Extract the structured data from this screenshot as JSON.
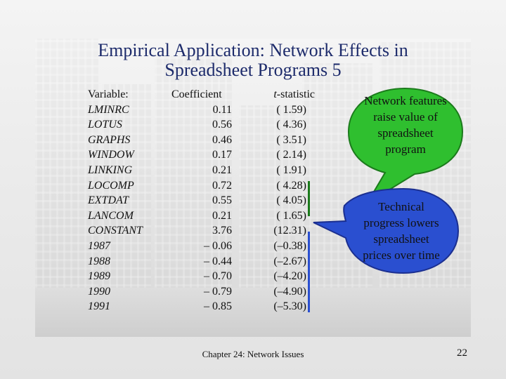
{
  "title": {
    "line1": "Empirical Application:  Network Effects in",
    "line2": "Spreadsheet Programs 5"
  },
  "table": {
    "headers": {
      "variable": "Variable:",
      "coefficient": "Coefficient",
      "tstat_label": "t",
      "tstat_rest": "-statistic"
    },
    "rows": [
      {
        "variable": "LMINRC",
        "coefficient": "0.11",
        "tstat": "( 1.59)"
      },
      {
        "variable": "LOTUS",
        "coefficient": "0.56",
        "tstat": "( 4.36)"
      },
      {
        "variable": "GRAPHS",
        "coefficient": "0.46",
        "tstat": "( 3.51)"
      },
      {
        "variable": "WINDOW",
        "coefficient": "0.17",
        "tstat": "( 2.14)"
      },
      {
        "variable": "LINKING",
        "coefficient": "0.21",
        "tstat": "( 1.91)"
      },
      {
        "variable": "LOCOMP",
        "coefficient": "0.72",
        "tstat": "( 4.28)"
      },
      {
        "variable": "EXTDAT",
        "coefficient": "0.55",
        "tstat": "( 4.05)"
      },
      {
        "variable": "LANCOM",
        "coefficient": "0.21",
        "tstat": "( 1.65)"
      },
      {
        "variable": "CONSTANT",
        "coefficient": "3.76",
        "tstat": "(12.31)"
      },
      {
        "variable": "1987",
        "coefficient": "– 0.06",
        "tstat": "(–0.38)"
      },
      {
        "variable": "1988",
        "coefficient": "– 0.44",
        "tstat": "(–2.67)"
      },
      {
        "variable": "1989",
        "coefficient": "– 0.70",
        "tstat": "(–4.20)"
      },
      {
        "variable": "1990",
        "coefficient": "– 0.79",
        "tstat": "(–4.90)"
      },
      {
        "variable": "1991",
        "coefficient": "– 0.85",
        "tstat": "(–5.30)"
      }
    ]
  },
  "callouts": {
    "network": {
      "line1": "Network features",
      "line2": "raise value of",
      "line3": "spreadsheet",
      "line4": "program"
    },
    "technical": {
      "line1": "Technical",
      "line2": "progress lowers",
      "line3": "spreadsheet",
      "line4": "prices over time"
    }
  },
  "colors": {
    "title": "#1d2b6b",
    "callout_fill": "#2fbf2f",
    "bracket_green": "#1b7a1b",
    "bracket_blue": "#2a4fd0"
  },
  "footer": {
    "chapter": "Chapter 24: Network Issues",
    "page": "22"
  }
}
